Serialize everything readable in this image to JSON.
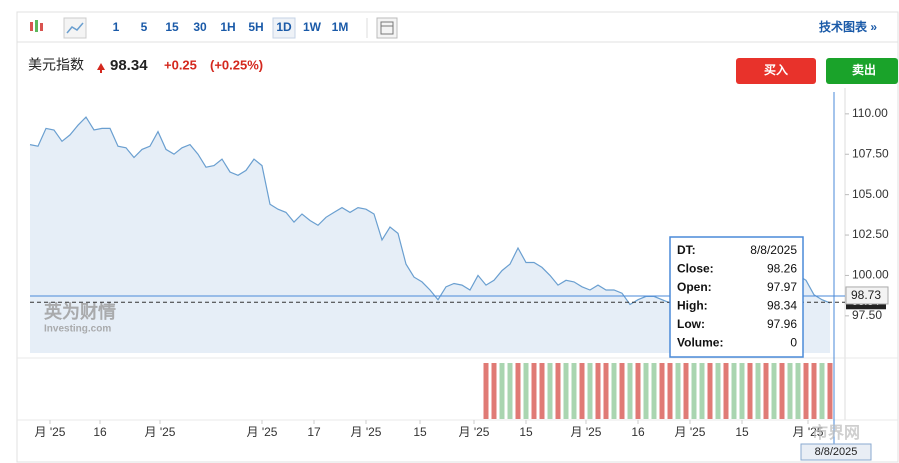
{
  "toolbar": {
    "intervals": [
      "1",
      "5",
      "15",
      "30",
      "1H",
      "5H",
      "1D",
      "1W",
      "1M"
    ],
    "active": "1D",
    "tech_chart": "技术图表 »"
  },
  "header": {
    "name": "美元指数",
    "price": "98.34",
    "change": "+0.25",
    "change_pct": "(+0.25%)",
    "buy": "买入",
    "sell": "卖出"
  },
  "tooltip": {
    "rows": [
      [
        "DT:",
        "8/8/2025"
      ],
      [
        "Close:",
        "98.26"
      ],
      [
        "Open:",
        "97.97"
      ],
      [
        "High:",
        "98.34"
      ],
      [
        "Low:",
        "97.96"
      ],
      [
        "Volume:",
        "0"
      ]
    ]
  },
  "watermark": {
    "brand": "英为财情",
    "site": "Investing.com",
    "corner": "市界网"
  },
  "chart_data": {
    "type": "area",
    "color": "#6a9fd0",
    "fill": "#e6eef7",
    "crosshair_value": 98.73,
    "last_value": 98.34,
    "values": [
      108.1,
      108.0,
      109.1,
      109.0,
      108.3,
      108.7,
      109.3,
      109.8,
      109.0,
      109.1,
      109.1,
      108.0,
      107.9,
      107.3,
      107.8,
      108.0,
      108.9,
      107.8,
      107.5,
      107.9,
      108.1,
      107.5,
      106.7,
      106.8,
      107.2,
      106.4,
      106.2,
      106.5,
      107.2,
      106.8,
      104.4,
      104.1,
      103.9,
      103.3,
      103.8,
      103.4,
      103.1,
      103.6,
      103.9,
      104.2,
      103.9,
      104.2,
      104.1,
      103.8,
      102.2,
      103.0,
      102.6,
      100.7,
      99.9,
      99.6,
      99.1,
      98.5,
      99.3,
      99.5,
      99.4,
      99.1,
      100.0,
      99.4,
      99.7,
      100.3,
      100.7,
      101.7,
      100.8,
      100.8,
      100.5,
      100.0,
      99.4,
      99.7,
      99.6,
      99.3,
      99.1,
      99.4,
      99.1,
      99.1,
      98.9,
      98.2,
      98.5,
      98.7,
      98.7,
      98.5,
      98.3,
      98.4,
      98.2,
      98.6,
      98.8,
      98.5,
      98.0,
      97.9,
      98.2,
      98.5,
      98.0,
      97.8,
      98.2,
      98.6,
      98.9,
      99.5,
      100.0,
      99.7,
      98.8,
      98.5,
      98.3
    ],
    "xlim": [
      0,
      100
    ],
    "xticks": [
      {
        "value": 2.5,
        "label": "月 '25"
      },
      {
        "value": 8.75,
        "label": "16"
      },
      {
        "value": 16.25,
        "label": "月 '25"
      },
      {
        "value": 29,
        "label": "月 '25"
      },
      {
        "value": 35.5,
        "label": "17"
      },
      {
        "value": 42,
        "label": "月 '25"
      },
      {
        "value": 48.75,
        "label": "15"
      },
      {
        "value": 55.5,
        "label": "月 '25"
      },
      {
        "value": 62,
        "label": "15"
      },
      {
        "value": 69.5,
        "label": "月 '25"
      },
      {
        "value": 76,
        "label": "16"
      },
      {
        "value": 82.5,
        "label": "月 '25"
      },
      {
        "value": 89,
        "label": "15"
      },
      {
        "value": 97.25,
        "label": "月 '25"
      }
    ],
    "ylim": [
      95.2,
      111.6
    ],
    "yticks": [
      {
        "value": 97.5,
        "label": "97.50"
      },
      {
        "value": 100,
        "label": "100.00"
      },
      {
        "value": 102.5,
        "label": "102.50"
      },
      {
        "value": 105,
        "label": "105.00"
      },
      {
        "value": 107.5,
        "label": "107.50"
      },
      {
        "value": 110,
        "label": "110.00"
      }
    ],
    "crosshair_label": "98.73",
    "volume_start": 57,
    "volume_direction": [
      "down",
      "down",
      "up",
      "up",
      "down",
      "up",
      "down",
      "down",
      "up",
      "down",
      "up",
      "up",
      "down",
      "up",
      "down",
      "down",
      "up",
      "down",
      "up",
      "down",
      "up",
      "up",
      "down",
      "down",
      "up",
      "down",
      "up",
      "up",
      "down",
      "up",
      "down",
      "up",
      "up",
      "down",
      "up",
      "down",
      "up",
      "down",
      "up",
      "up",
      "down",
      "down",
      "up",
      "down"
    ],
    "volume_colors": {
      "up": "#a9d5b0",
      "down": "#e07a75"
    }
  }
}
